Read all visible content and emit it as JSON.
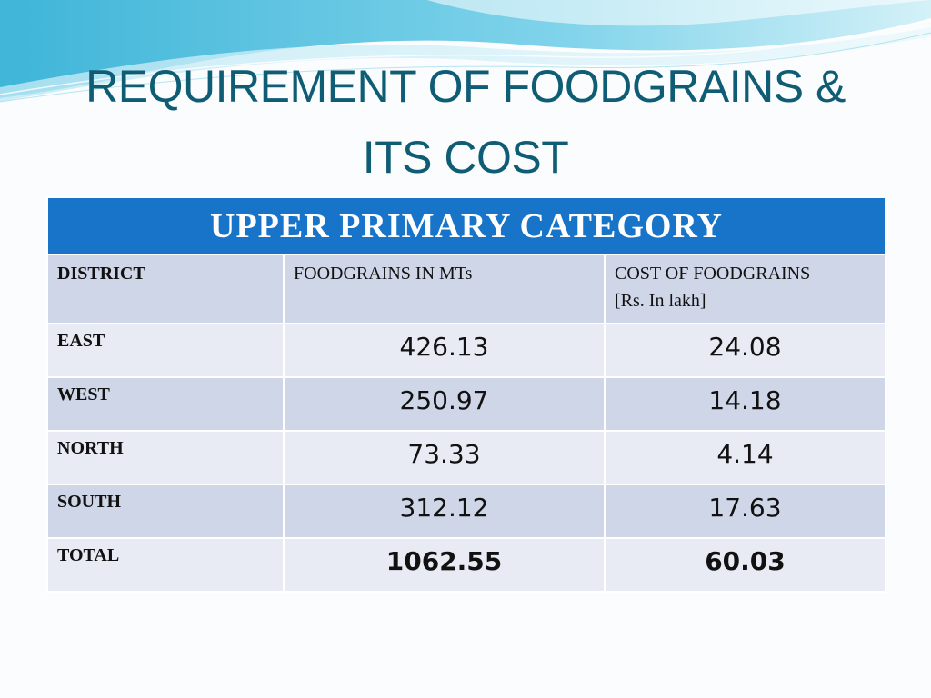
{
  "slide": {
    "title_line1": "REQUIREMENT OF FOODGRAINS &",
    "title_line2": "ITS COST"
  },
  "table": {
    "category": "UPPER PRIMARY CATEGORY",
    "headers": {
      "district": "DISTRICT",
      "foodgrains": "FOODGRAINS IN MTs",
      "cost_line1": "COST OF FOODGRAINS",
      "cost_line2": "[Rs. In lakh]"
    },
    "rows": [
      {
        "district": "EAST",
        "foodgrains": "426.13",
        "cost": "24.08"
      },
      {
        "district": "WEST",
        "foodgrains": "250.97",
        "cost": "14.18"
      },
      {
        "district": "NORTH",
        "foodgrains": "73.33",
        "cost": "4.14"
      },
      {
        "district": "SOUTH",
        "foodgrains": "312.12",
        "cost": "17.63"
      }
    ],
    "total": {
      "district": "TOTAL",
      "foodgrains": "1062.55",
      "cost": "60.03"
    }
  },
  "colors": {
    "title": "#0f5d74",
    "category_band": "#1774c8",
    "row_light": "#e8ebf4",
    "row_dark": "#cfd6e8"
  }
}
